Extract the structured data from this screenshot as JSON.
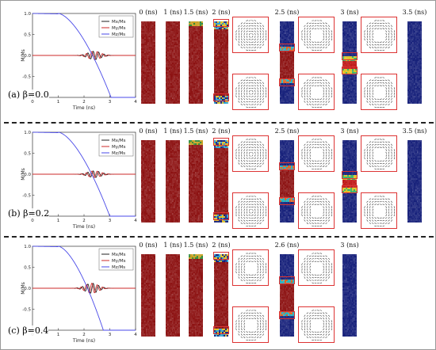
{
  "panels": [
    {
      "caption": "(a) β=0.0",
      "beta": 0.0,
      "legend": [
        "Mx/Ms",
        "My/Ms",
        "Mz/Ms"
      ],
      "ylabel": "M/Ms",
      "xlabel": "Time (ns)",
      "xticks": [
        "0",
        "1",
        "2",
        "3",
        "4"
      ],
      "yticks": [
        "1.0",
        "0.5",
        "0.0",
        "-0.5",
        "-1.0"
      ],
      "switch_time_ns": 3.05,
      "osc_center_ns": 2.4,
      "osc_amp": 0.1,
      "snapshots": [
        {
          "label": "0 (ns)",
          "state": "up"
        },
        {
          "label": "1 (ns)",
          "state": "up"
        },
        {
          "label": "1.5 (ns)",
          "state": "up-top"
        },
        {
          "label": "2 (ns)",
          "state": "walls-both"
        },
        {
          "label": "2.5 (ns)",
          "state": "walls-mid"
        },
        {
          "label": "3 (ns)",
          "state": "walls-center"
        },
        {
          "label": "3.5 (ns)",
          "state": "down"
        }
      ]
    },
    {
      "caption": "(b) β=0.2",
      "beta": 0.2,
      "legend": [
        "Mx/Ms",
        "My/Ms",
        "Mz/Ms"
      ],
      "ylabel": "M/Ms",
      "xlabel": "Time (ns)",
      "xticks": [
        "0",
        "1",
        "2",
        "3",
        "4"
      ],
      "yticks": [
        "1.0",
        "0.5",
        "0.0",
        "-0.5",
        "-1.0"
      ],
      "switch_time_ns": 3.0,
      "osc_center_ns": 2.4,
      "osc_amp": 0.08,
      "snapshots": [
        {
          "label": "0 (ns)",
          "state": "up"
        },
        {
          "label": "1 (ns)",
          "state": "up"
        },
        {
          "label": "1.5 (ns)",
          "state": "up-top"
        },
        {
          "label": "2 (ns)",
          "state": "walls-both"
        },
        {
          "label": "2.5 (ns)",
          "state": "walls-mid"
        },
        {
          "label": "3 (ns)",
          "state": "walls-center"
        },
        {
          "label": "3.5 (ns)",
          "state": "down"
        }
      ]
    },
    {
      "caption": "(c) β=0.4",
      "beta": 0.4,
      "legend": [
        "Mx/Ms",
        "My/Ms",
        "Mz/Ms"
      ],
      "ylabel": "M/Ms",
      "xlabel": "Time (ns)",
      "xticks": [
        "0",
        "1",
        "2",
        "3",
        "4"
      ],
      "yticks": [
        "1.0",
        "0.5",
        "0.0",
        "-0.5",
        "-1.0"
      ],
      "switch_time_ns": 2.75,
      "osc_center_ns": 2.3,
      "osc_amp": 0.12,
      "snapshots": [
        {
          "label": "0 (ns)",
          "state": "up"
        },
        {
          "label": "1 (ns)",
          "state": "up"
        },
        {
          "label": "1.5 (ns)",
          "state": "up-top"
        },
        {
          "label": "2 (ns)",
          "state": "walls-both"
        },
        {
          "label": "2.6 (ns)",
          "state": "walls-mid"
        },
        {
          "label": "3 (ns)",
          "state": "down"
        }
      ]
    }
  ],
  "colors": {
    "mx": "#222222",
    "my": "#cc2a2a",
    "mz": "#4a4ae8",
    "up": "#8c1111",
    "down": "#16207a",
    "zoom": "#dd3333"
  }
}
